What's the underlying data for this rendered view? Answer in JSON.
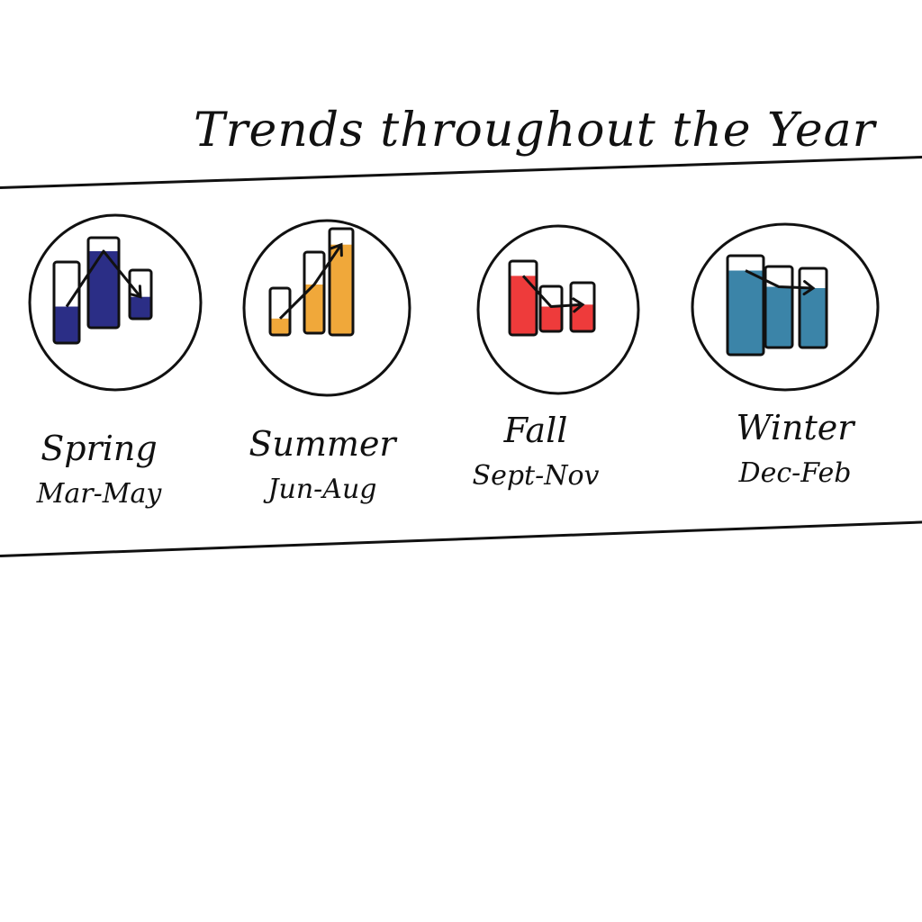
{
  "title": "Trends throughout the Year",
  "colors": {
    "ink": "#111111"
  },
  "seasons": [
    {
      "name": "Spring",
      "months": "Mar-May",
      "color": "#2B2E86",
      "trend": "up-down",
      "bar_fill": [
        0.45,
        0.85,
        0.45
      ]
    },
    {
      "name": "Summer",
      "months": "Jun-Aug",
      "color": "#F0A83A",
      "trend": "rising",
      "bar_fill": [
        0.35,
        0.6,
        0.85
      ]
    },
    {
      "name": "Fall",
      "months": "Sept-Nov",
      "color": "#EE3B3B",
      "trend": "falling",
      "bar_fill": [
        0.8,
        0.55,
        0.55
      ]
    },
    {
      "name": "Winter",
      "months": "Dec-Feb",
      "color": "#3B84A8",
      "trend": "flat",
      "bar_fill": [
        0.85,
        0.75,
        0.75
      ]
    }
  ]
}
